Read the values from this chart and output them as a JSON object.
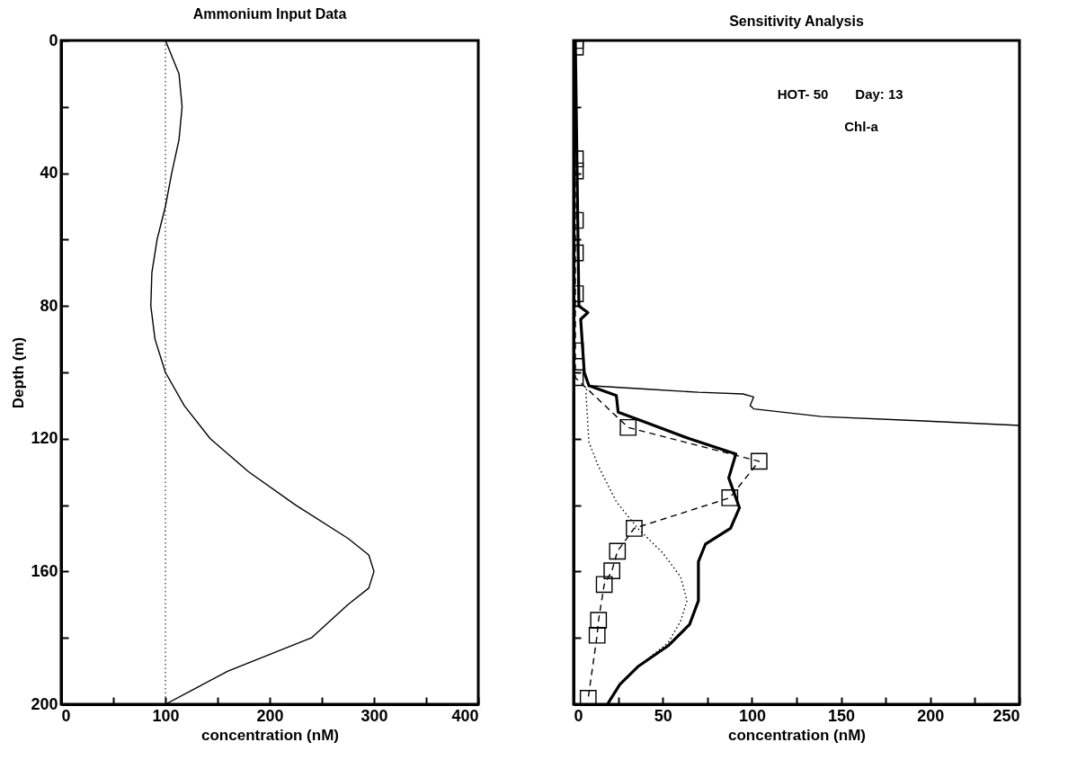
{
  "chart_data": [
    {
      "type": "line",
      "title": "Ammonium Input Data",
      "xlabel": "concentration (nM)",
      "ylabel": "Depth (m)",
      "xlim": [
        0,
        400
      ],
      "ylim": [
        200,
        0
      ],
      "xticks": [
        0,
        {
          "value": 50,
          "label": null
        },
        100,
        {
          "value": 150,
          "label": null
        },
        200,
        {
          "value": 250,
          "label": null
        },
        300,
        {
          "value": 350,
          "label": null
        },
        400
      ],
      "yticks": [
        0,
        {
          "value": 20,
          "label": null
        },
        40,
        {
          "value": 60,
          "label": null
        },
        80,
        {
          "value": 100,
          "label": null
        },
        120,
        {
          "value": 140,
          "label": null
        },
        160,
        {
          "value": 180,
          "label": null
        },
        200
      ],
      "grid": false,
      "series": [
        {
          "color": "#000000",
          "x": [
            100,
            113,
            116,
            113,
            106,
            100,
            92,
            87,
            86,
            90,
            100,
            118,
            143,
            180,
            225,
            275,
            295,
            300,
            295,
            275,
            240,
            200,
            160,
            130,
            100
          ],
          "values": [
            0,
            10,
            20,
            30,
            40,
            50,
            60,
            70,
            80,
            90,
            100,
            110,
            120,
            130,
            140,
            150,
            155,
            160,
            165,
            170,
            180,
            185,
            190,
            195,
            200
          ]
        }
      ],
      "ref_lines": [
        {
          "axis": "x",
          "value": 100,
          "color": "#000000",
          "line_style": "dotted"
        }
      ]
    },
    {
      "type": "line",
      "title": "Sensitivity Analysis",
      "xlabel": "concentration (nM)",
      "xlim": [
        0,
        250
      ],
      "ylim": [
        200,
        0
      ],
      "xticks": [
        0,
        {
          "value": 25,
          "label": null
        },
        50,
        {
          "value": 75,
          "label": null
        },
        100,
        {
          "value": 125,
          "label": null
        },
        150,
        {
          "value": 175,
          "label": null
        },
        200,
        {
          "value": 225,
          "label": null
        },
        250
      ],
      "yticks": [
        {
          "value": 0,
          "label": null
        },
        {
          "value": 20,
          "label": null
        },
        {
          "value": 40,
          "label": null
        },
        {
          "value": 60,
          "label": null
        },
        {
          "value": 80,
          "label": null
        },
        {
          "value": 100,
          "label": null
        },
        {
          "value": 120,
          "label": null
        },
        {
          "value": 140,
          "label": null
        },
        {
          "value": 160,
          "label": null
        },
        {
          "value": 180,
          "label": null
        },
        {
          "value": 200,
          "label": null
        }
      ],
      "tick_labels": "x",
      "grid": false,
      "annotations": [
        "HOT- 50",
        "Day: 13",
        "Chl-a"
      ],
      "series": [
        {
          "color": "#000000",
          "line_style": "solid",
          "marker": "none",
          "x": [
            1,
            2,
            3,
            8,
            4,
            6,
            8.6,
            24,
            25,
            40,
            65,
            91,
            87,
            93,
            88,
            74,
            70,
            70,
            65,
            53,
            36,
            26,
            20.6,
            19
          ],
          "values": [
            0,
            40,
            80,
            82,
            84,
            100,
            104,
            107,
            112,
            115,
            120,
            124.6,
            131.8,
            140.8,
            147,
            151.7,
            157,
            168.8,
            176,
            182.4,
            188.7,
            194,
            198.6,
            200
          ]
        },
        {
          "color": "#000000",
          "line_style": "solid",
          "marker": "none",
          "x": [
            8.6,
            40,
            70,
            95,
            101,
            99,
            101,
            139,
            190,
            250
          ],
          "values": [
            104,
            105,
            106,
            106.5,
            107.4,
            110,
            111,
            113.3,
            114.5,
            116
          ]
        },
        {
          "color": "#000000",
          "line_style": "dotted",
          "marker": "none",
          "x": [
            8.6,
            6.9,
            8.6,
            13.7,
            24,
            36,
            50,
            60,
            63.6,
            60,
            53,
            36,
            26,
            20.6
          ],
          "values": [
            104,
            105.6,
            121,
            128,
            139,
            147,
            154.4,
            161.6,
            168.8,
            175,
            181.5,
            188.7,
            194,
            198.6
          ]
        },
        {
          "color": "#000000",
          "line_style": "dashed",
          "marker": "square",
          "x": [
            1,
            1,
            1,
            1,
            1,
            1,
            1,
            1,
            1,
            30.6,
            104,
            87.6,
            34,
            24.6,
            21.5,
            17.2,
            14,
            13.2,
            8.2
          ],
          "values": [
            0,
            2,
            35.7,
            39.3,
            54.2,
            64,
            76.3,
            93.5,
            101.6,
            116.6,
            126.8,
            137.8,
            147,
            153.9,
            159.8,
            163.9,
            174.7,
            179.2,
            198.2
          ]
        }
      ]
    }
  ]
}
